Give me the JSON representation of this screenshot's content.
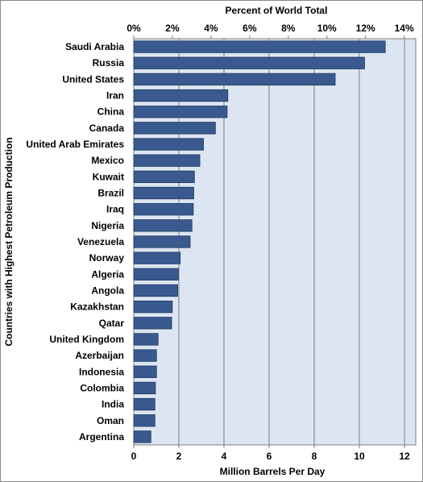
{
  "chart_data": {
    "type": "bar",
    "orientation": "horizontal",
    "ylabel": "Countries with Highest Petroleum Production",
    "xlabel": "Million Barrels Per Day",
    "x2label": "Percent of World Total",
    "xlim": [
      0,
      12.5
    ],
    "x_ticks": [
      "0",
      "2",
      "4",
      "6",
      "8",
      "10",
      "12"
    ],
    "x_tick_values": [
      0,
      2,
      4,
      6,
      8,
      10,
      12
    ],
    "x2_ticks": [
      "0%",
      "2%",
      "4%",
      "6%",
      "8%",
      "10%",
      "12%",
      "14%"
    ],
    "x2_tick_values": [
      0,
      2,
      4,
      6,
      8,
      10,
      12,
      14
    ],
    "x2lim": [
      0,
      14.6
    ],
    "grid": "vertical",
    "bar_color": "#3a5a8f",
    "plot_background": "#dce6f2",
    "categories": [
      "Saudi Arabia",
      "Russia",
      "United States",
      "Iran",
      "China",
      "Canada",
      "United Arab Emirates",
      "Mexico",
      "Kuwait",
      "Brazil",
      "Iraq",
      "Nigeria",
      "Venezuela",
      "Norway",
      "Algeria",
      "Angola",
      "Kazakhstan",
      "Qatar",
      "United Kingdom",
      "Azerbaijan",
      "Indonesia",
      "Colombia",
      "India",
      "Oman",
      "Argentina"
    ],
    "values": [
      11.15,
      10.23,
      8.93,
      4.17,
      4.14,
      3.62,
      3.09,
      2.93,
      2.69,
      2.66,
      2.64,
      2.58,
      2.5,
      2.06,
      1.97,
      1.95,
      1.71,
      1.68,
      1.08,
      1.01,
      1.01,
      0.96,
      0.94,
      0.94,
      0.76
    ]
  }
}
